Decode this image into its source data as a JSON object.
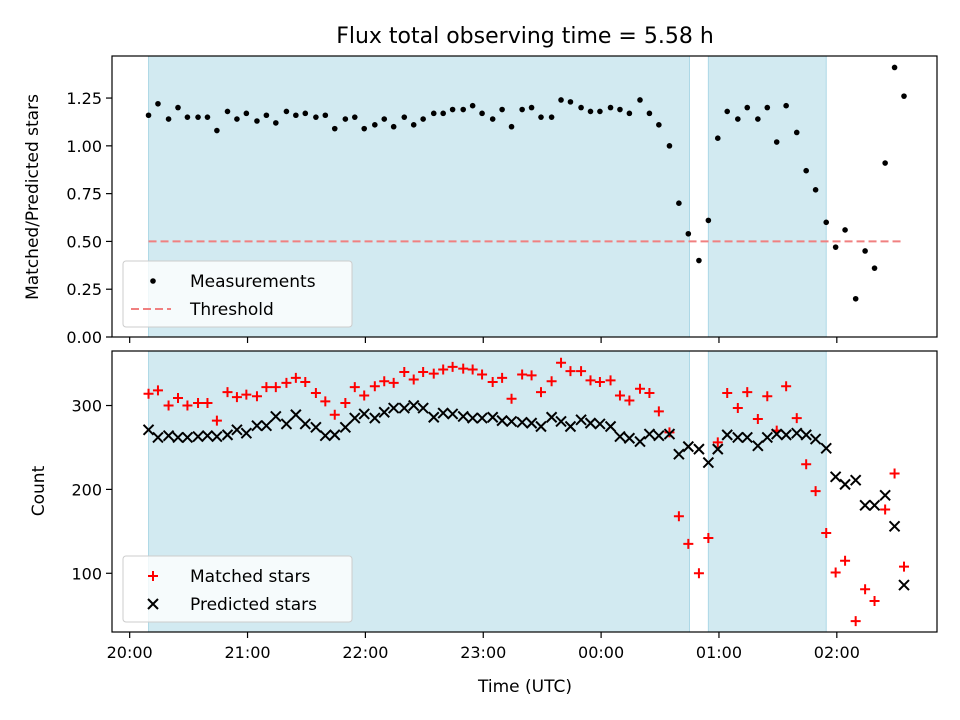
{
  "title": "Flux total observing time = 5.58 h",
  "xlabel": "Time (UTC)",
  "x_tick_labels": [
    "20:00",
    "21:00",
    "22:00",
    "23:00",
    "00:00",
    "01:00",
    "02:00"
  ],
  "colors": {
    "band": "#add8e6",
    "measurement": "#000000",
    "threshold": "#f08080",
    "matched": "#ff0000",
    "predicted": "#000000"
  },
  "chart_data": [
    {
      "type": "scatter",
      "title": "Flux total observing time = 5.58 h",
      "xlabel": "Time (UTC)",
      "ylabel": "Matched/Predicted stars",
      "x_unit": "hours after 20:00 UTC",
      "xlim": [
        -0.15,
        6.85
      ],
      "ylim": [
        0,
        1.47
      ],
      "yticks": [
        0,
        0.25,
        0.5,
        0.75,
        1.0,
        1.25
      ],
      "ytick_labels": [
        "0.00",
        "0.25",
        "0.50",
        "0.75",
        "1.00",
        "1.25"
      ],
      "shaded_intervals": [
        [
          0.16,
          4.75
        ],
        [
          4.91,
          5.91
        ]
      ],
      "legend_location": "lower left",
      "series": [
        {
          "name": "Measurements",
          "marker": "dot",
          "x": [
            0.16,
            0.24,
            0.33,
            0.41,
            0.49,
            0.58,
            0.66,
            0.74,
            0.83,
            0.91,
            0.99,
            1.08,
            1.16,
            1.24,
            1.33,
            1.41,
            1.49,
            1.58,
            1.66,
            1.74,
            1.83,
            1.91,
            1.99,
            2.08,
            2.16,
            2.24,
            2.33,
            2.41,
            2.49,
            2.58,
            2.66,
            2.74,
            2.83,
            2.91,
            2.99,
            3.08,
            3.16,
            3.24,
            3.33,
            3.41,
            3.49,
            3.58,
            3.66,
            3.74,
            3.83,
            3.91,
            3.99,
            4.08,
            4.16,
            4.24,
            4.33,
            4.41,
            4.49,
            4.58,
            4.66,
            4.74,
            4.83,
            4.91,
            4.99,
            5.07,
            5.16,
            5.24,
            5.33,
            5.41,
            5.49,
            5.57,
            5.66,
            5.74,
            5.82,
            5.91,
            5.99,
            6.07,
            6.16,
            6.24,
            6.32,
            6.41,
            6.49,
            6.57
          ],
          "y": [
            1.16,
            1.22,
            1.14,
            1.2,
            1.15,
            1.15,
            1.15,
            1.08,
            1.18,
            1.14,
            1.17,
            1.13,
            1.16,
            1.12,
            1.18,
            1.16,
            1.17,
            1.15,
            1.16,
            1.09,
            1.14,
            1.15,
            1.09,
            1.11,
            1.14,
            1.1,
            1.15,
            1.11,
            1.14,
            1.17,
            1.17,
            1.19,
            1.19,
            1.21,
            1.17,
            1.14,
            1.19,
            1.1,
            1.19,
            1.2,
            1.15,
            1.15,
            1.24,
            1.23,
            1.2,
            1.18,
            1.18,
            1.2,
            1.19,
            1.17,
            1.24,
            1.17,
            1.11,
            1.0,
            0.7,
            0.54,
            0.4,
            0.61,
            1.04,
            1.18,
            1.14,
            1.2,
            1.14,
            1.2,
            1.02,
            1.21,
            1.07,
            0.87,
            0.77,
            0.6,
            0.47,
            0.56,
            0.2,
            0.45,
            0.36,
            0.91,
            1.41,
            1.26
          ]
        },
        {
          "name": "Threshold",
          "line_style": "dashed",
          "x": [
            0.16,
            6.57
          ],
          "y": [
            0.5,
            0.5
          ]
        }
      ]
    },
    {
      "type": "scatter",
      "xlabel": "Time (UTC)",
      "ylabel": "Count",
      "x_unit": "hours after 20:00 UTC",
      "xlim": [
        -0.15,
        6.85
      ],
      "ylim": [
        30,
        365
      ],
      "yticks": [
        100,
        200,
        300
      ],
      "ytick_labels": [
        "100",
        "200",
        "300"
      ],
      "shaded_intervals": [
        [
          0.16,
          4.75
        ],
        [
          4.91,
          5.91
        ]
      ],
      "legend_location": "lower left",
      "series": [
        {
          "name": "Matched stars",
          "marker": "plus",
          "x": [
            0.16,
            0.24,
            0.33,
            0.41,
            0.49,
            0.58,
            0.66,
            0.74,
            0.83,
            0.91,
            0.99,
            1.08,
            1.16,
            1.24,
            1.33,
            1.41,
            1.49,
            1.58,
            1.66,
            1.74,
            1.83,
            1.91,
            1.99,
            2.08,
            2.16,
            2.24,
            2.33,
            2.41,
            2.49,
            2.58,
            2.66,
            2.74,
            2.83,
            2.91,
            2.99,
            3.08,
            3.16,
            3.24,
            3.33,
            3.41,
            3.49,
            3.58,
            3.66,
            3.74,
            3.83,
            3.91,
            3.99,
            4.08,
            4.16,
            4.24,
            4.33,
            4.41,
            4.49,
            4.58,
            4.66,
            4.74,
            4.83,
            4.91,
            4.99,
            5.07,
            5.16,
            5.24,
            5.33,
            5.41,
            5.49,
            5.57,
            5.66,
            5.74,
            5.82,
            5.91,
            5.99,
            6.07,
            6.16,
            6.24,
            6.32,
            6.41,
            6.49,
            6.57
          ],
          "y": [
            314,
            318,
            300,
            309,
            300,
            303,
            303,
            282,
            316,
            310,
            313,
            311,
            322,
            322,
            327,
            333,
            328,
            315,
            305,
            289,
            303,
            322,
            312,
            323,
            329,
            327,
            340,
            331,
            340,
            338,
            343,
            346,
            344,
            343,
            337,
            328,
            333,
            308,
            337,
            336,
            316,
            329,
            351,
            341,
            341,
            330,
            328,
            330,
            312,
            306,
            320,
            315,
            293,
            268,
            168,
            135,
            100,
            142,
            256,
            315,
            297,
            316,
            284,
            311,
            270,
            323,
            285,
            230,
            198,
            148,
            101,
            115,
            43,
            81,
            67,
            176,
            219,
            108
          ]
        },
        {
          "name": "Predicted stars",
          "marker": "x",
          "x": [
            0.16,
            0.24,
            0.33,
            0.41,
            0.49,
            0.58,
            0.66,
            0.74,
            0.83,
            0.91,
            0.99,
            1.08,
            1.16,
            1.24,
            1.33,
            1.41,
            1.49,
            1.58,
            1.66,
            1.74,
            1.83,
            1.91,
            1.99,
            2.08,
            2.16,
            2.24,
            2.33,
            2.41,
            2.49,
            2.58,
            2.66,
            2.74,
            2.83,
            2.91,
            2.99,
            3.08,
            3.16,
            3.24,
            3.33,
            3.41,
            3.49,
            3.58,
            3.66,
            3.74,
            3.83,
            3.91,
            3.99,
            4.08,
            4.16,
            4.24,
            4.33,
            4.41,
            4.49,
            4.58,
            4.66,
            4.74,
            4.83,
            4.91,
            4.99,
            5.07,
            5.16,
            5.24,
            5.33,
            5.41,
            5.49,
            5.57,
            5.66,
            5.74,
            5.82,
            5.91,
            5.99,
            6.07,
            6.16,
            6.24,
            6.32,
            6.41,
            6.49,
            6.57
          ],
          "y": [
            271,
            262,
            264,
            262,
            262,
            263,
            264,
            263,
            265,
            271,
            267,
            276,
            276,
            287,
            278,
            289,
            278,
            274,
            264,
            265,
            274,
            285,
            290,
            285,
            292,
            297,
            297,
            300,
            297,
            286,
            291,
            290,
            287,
            285,
            285,
            286,
            282,
            281,
            280,
            279,
            275,
            286,
            281,
            275,
            283,
            279,
            278,
            275,
            263,
            261,
            257,
            266,
            264,
            266,
            242,
            251,
            248,
            232,
            248,
            265,
            262,
            262,
            252,
            262,
            266,
            265,
            267,
            265,
            260,
            249,
            215,
            206,
            211,
            181,
            181,
            193,
            156,
            86
          ]
        }
      ]
    }
  ]
}
